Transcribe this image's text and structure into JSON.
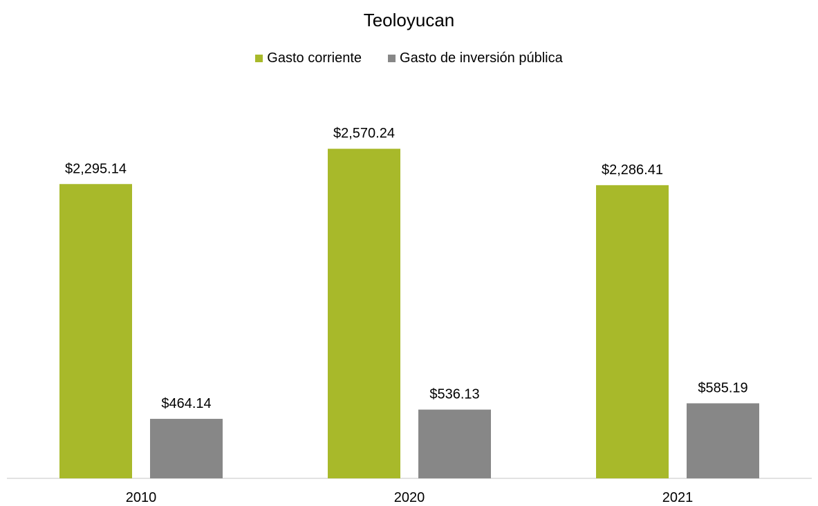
{
  "chart_data": {
    "type": "bar",
    "title": "Teoloyucan",
    "categories": [
      "2010",
      "2020",
      "2021"
    ],
    "series": [
      {
        "name": "Gasto corriente",
        "color": "#a8b92a",
        "values": [
          2295.14,
          2570.24,
          2286.41
        ],
        "labels": [
          "$2,295.14",
          "$2,570.24",
          "$2,286.41"
        ]
      },
      {
        "name": "Gasto de inversión pública",
        "color": "#878787",
        "values": [
          464.14,
          536.13,
          585.19
        ],
        "labels": [
          "$464.14",
          "$536.13",
          "$585.19"
        ]
      }
    ],
    "ylim": [
      0,
      3000
    ],
    "grid": false,
    "legend_position": "top"
  }
}
